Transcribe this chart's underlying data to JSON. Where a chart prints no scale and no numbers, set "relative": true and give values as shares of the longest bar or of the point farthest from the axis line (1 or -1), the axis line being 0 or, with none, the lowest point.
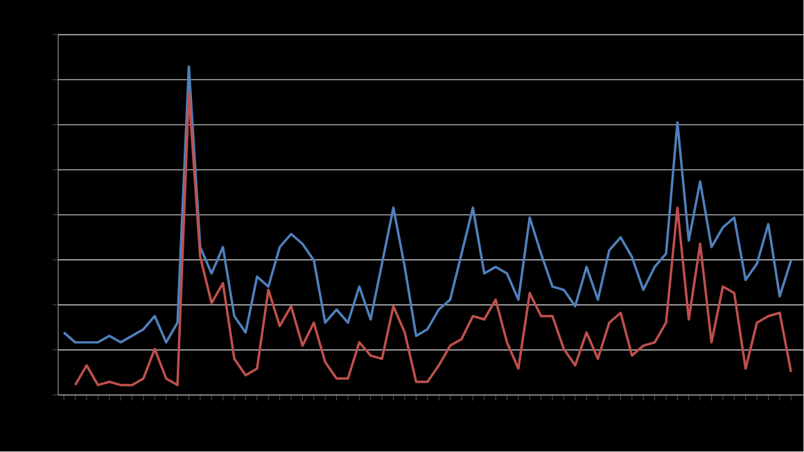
{
  "chart_data": {
    "type": "line",
    "relative": true,
    "grid": "y",
    "marker": "none",
    "line_style": "solid",
    "categories": [
      null,
      null,
      null,
      null,
      null,
      null,
      null,
      null,
      null,
      null,
      null,
      null,
      null,
      null,
      null,
      null,
      null,
      null,
      null,
      null,
      null,
      null,
      null,
      null,
      null,
      null,
      null,
      null,
      null,
      null,
      null,
      null,
      null,
      null,
      null,
      null,
      null,
      null,
      null,
      null,
      null,
      null,
      null,
      null,
      null,
      null,
      null,
      null,
      null,
      null,
      null,
      null,
      null,
      null,
      null,
      null,
      null,
      null,
      null,
      null,
      null,
      null,
      null,
      null,
      null
    ],
    "series": [
      {
        "color": "#4f81bd",
        "values": [
          0.19,
          0.16,
          0.16,
          0.16,
          0.18,
          0.16,
          0.18,
          0.2,
          0.24,
          0.16,
          0.22,
          1,
          0.45,
          0.37,
          0.45,
          0.24,
          0.19,
          0.36,
          0.33,
          0.45,
          0.49,
          0.46,
          0.41,
          0.22,
          0.26,
          0.22,
          0.33,
          0.23,
          0.4,
          0.57,
          0.39,
          0.18,
          0.2,
          0.26,
          0.29,
          0.43,
          0.57,
          0.37,
          0.39,
          0.37,
          0.29,
          0.54,
          0.43,
          0.33,
          0.32,
          0.27,
          0.39,
          0.29,
          0.44,
          0.48,
          0.42,
          0.32,
          0.39,
          0.43,
          0.83,
          0.47,
          0.65,
          0.45,
          0.51,
          0.54,
          0.35,
          0.4,
          0.52,
          0.3,
          0.41
        ]
      },
      {
        "color": "#c0504d",
        "values": [
          null,
          0.03,
          0.09,
          0.03,
          0.04,
          0.03,
          0.03,
          0.05,
          0.14,
          0.05,
          0.03,
          0.92,
          0.42,
          0.28,
          0.34,
          0.11,
          0.06,
          0.08,
          0.32,
          0.21,
          0.27,
          0.15,
          0.22,
          0.1,
          0.05,
          0.05,
          0.16,
          0.12,
          0.11,
          0.27,
          0.19,
          0.04,
          0.04,
          0.09,
          0.15,
          0.17,
          0.24,
          0.23,
          0.29,
          0.16,
          0.08,
          0.31,
          0.24,
          0.24,
          0.14,
          0.09,
          0.19,
          0.11,
          0.22,
          0.25,
          0.12,
          0.15,
          0.16,
          0.22,
          0.57,
          0.23,
          0.46,
          0.16,
          0.33,
          0.31,
          0.08,
          0.22,
          0.24,
          0.25,
          0.07
        ]
      }
    ]
  }
}
